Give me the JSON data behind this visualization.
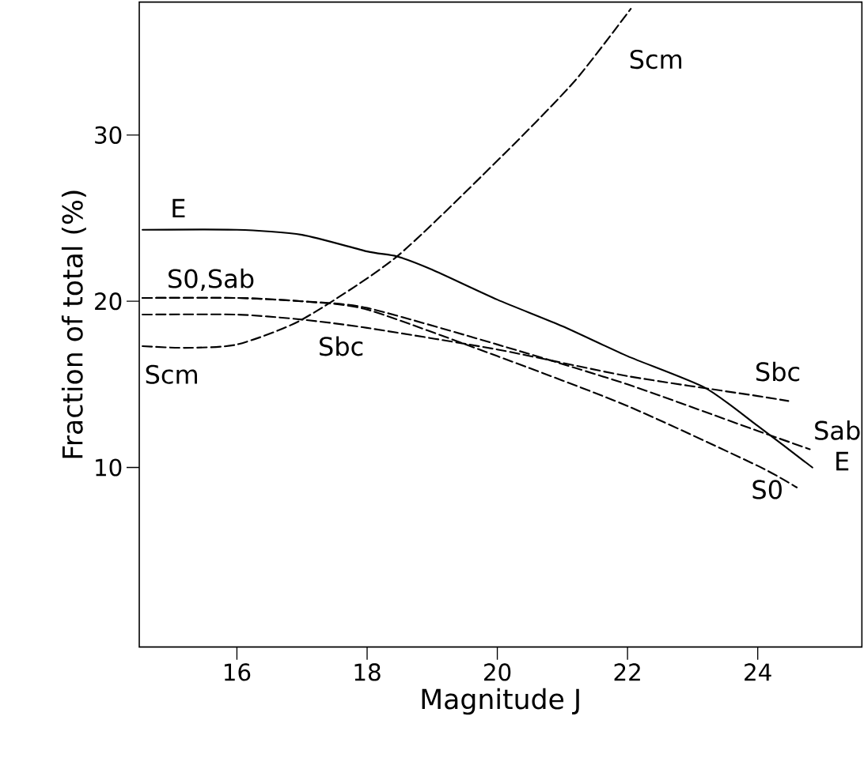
{
  "chart_data": {
    "type": "line",
    "xlabel": "Magnitude J",
    "ylabel": "Fraction of total (%)",
    "xlim": [
      14.5,
      25.6
    ],
    "ylim": [
      -0.8,
      38
    ],
    "xticks": [
      16,
      18,
      20,
      22,
      24
    ],
    "yticks": [
      10,
      20,
      30
    ],
    "grid": false,
    "legend": false,
    "marker": "none",
    "series": [
      {
        "name": "E",
        "color": "#000000",
        "line_style": "solid",
        "x": [
          14.55,
          16,
          17,
          18,
          18.46,
          19,
          20,
          21,
          22,
          23.19,
          24,
          24.84
        ],
        "values": [
          24.3,
          24.3,
          24.0,
          23.0,
          22.7,
          21.9,
          20.1,
          18.5,
          16.7,
          14.8,
          12.5,
          10.0
        ]
      },
      {
        "name": "Scm",
        "color": "#000000",
        "line_style": "dashed",
        "x": [
          14.55,
          15.2,
          16,
          17,
          18.46,
          20.14,
          21.2,
          22.05
        ],
        "values": [
          17.3,
          17.2,
          17.4,
          18.9,
          22.7,
          29.0,
          33.3,
          37.6
        ]
      },
      {
        "name": "S0",
        "color": "#000000",
        "line_style": "dashed",
        "x": [
          14.55,
          16,
          17,
          18,
          20,
          22,
          24,
          24.6
        ],
        "values": [
          20.2,
          20.2,
          20.0,
          19.5,
          16.7,
          13.7,
          10.1,
          8.8
        ]
      },
      {
        "name": "Sab",
        "color": "#000000",
        "line_style": "dashed",
        "x": [
          14.55,
          16,
          17,
          18,
          20,
          22,
          24,
          24.8
        ],
        "values": [
          20.2,
          20.2,
          20.0,
          19.6,
          17.4,
          15.0,
          12.2,
          11.1
        ]
      },
      {
        "name": "Sbc",
        "color": "#000000",
        "line_style": "dashed",
        "x": [
          14.55,
          16,
          17,
          18,
          20,
          22,
          24,
          24.47
        ],
        "values": [
          19.2,
          19.2,
          18.9,
          18.4,
          17.1,
          15.5,
          14.3,
          14.0
        ]
      }
    ],
    "annotations": [
      "E",
      "S0,Sab",
      "Scm",
      "Sbc"
    ]
  }
}
